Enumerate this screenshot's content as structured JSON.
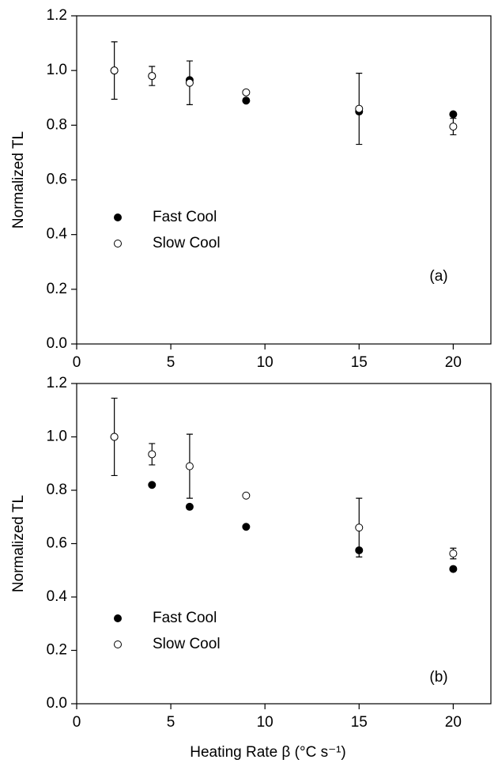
{
  "chart_data": [
    {
      "type": "scatter",
      "y_label": "Normalized TL",
      "annotation": "(a)",
      "xlim": [
        0,
        22
      ],
      "xticks": [
        0,
        5,
        10,
        15,
        20
      ],
      "ylim": [
        0,
        1.2
      ],
      "yticks": [
        {
          "value": 0,
          "label": "0.0"
        },
        {
          "value": 0.2,
          "label": "0.2"
        },
        {
          "value": 0.4,
          "label": "0.4"
        },
        {
          "value": 0.6,
          "label": "0.6"
        },
        {
          "value": 0.8,
          "label": "0.8"
        },
        {
          "value": 1.0,
          "label": "1.0"
        },
        {
          "value": 1.2,
          "label": "1.2"
        }
      ],
      "x": [
        2,
        4,
        6,
        9,
        15,
        20
      ],
      "series": [
        {
          "name": "Fast Cool",
          "color": "#000000",
          "values": [
            1.0,
            0.98,
            0.965,
            0.89,
            0.85,
            0.84
          ]
        },
        {
          "name": "Slow Cool",
          "color": "#ffffff",
          "values": [
            1.0,
            0.98,
            0.955,
            0.92,
            0.86,
            0.795
          ],
          "errors": [
            0.105,
            0.035,
            0.08,
            null,
            0.13,
            0.03
          ]
        }
      ]
    },
    {
      "type": "scatter",
      "y_label": "Normalized TL",
      "annotation": "(b)",
      "x_label": "Heating Rate β   (°C s⁻¹)",
      "xlim": [
        0,
        22
      ],
      "xticks": [
        0,
        5,
        10,
        15,
        20
      ],
      "ylim": [
        0,
        1.2
      ],
      "yticks": [
        {
          "value": 0,
          "label": "0.0"
        },
        {
          "value": 0.2,
          "label": "0.2"
        },
        {
          "value": 0.4,
          "label": "0.4"
        },
        {
          "value": 0.6,
          "label": "0.6"
        },
        {
          "value": 0.8,
          "label": "0.8"
        },
        {
          "value": 1.0,
          "label": "1.0"
        },
        {
          "value": 1.2,
          "label": "1.2"
        }
      ],
      "x": [
        2,
        4,
        6,
        9,
        15,
        20
      ],
      "series": [
        {
          "name": "Fast Cool",
          "color": "#000000",
          "values": [
            1.0,
            0.82,
            0.738,
            0.663,
            0.575,
            0.505
          ]
        },
        {
          "name": "Slow Cool",
          "color": "#ffffff",
          "values": [
            1.0,
            0.935,
            0.89,
            0.78,
            0.66,
            0.563
          ],
          "errors": [
            0.145,
            0.04,
            0.12,
            null,
            0.11,
            0.02
          ]
        }
      ]
    }
  ]
}
